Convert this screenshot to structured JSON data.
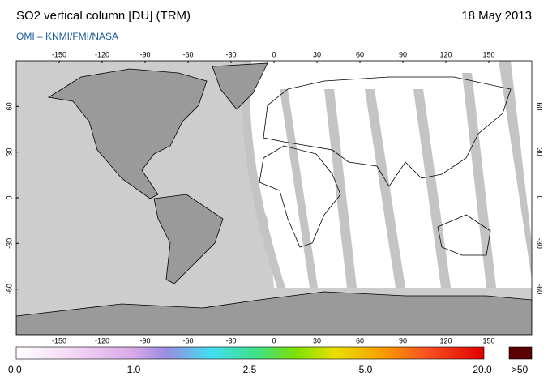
{
  "header": {
    "title": "SO2 vertical column [DU] (TRM)",
    "date": "18 May 2013",
    "source": "OMI  –  KNMI/FMI/NASA"
  },
  "map": {
    "xlim": [
      -180,
      180
    ],
    "ylim": [
      -90,
      90
    ],
    "lon_ticks": [
      -150,
      -120,
      -90,
      -60,
      -30,
      0,
      30,
      60,
      90,
      120,
      150
    ],
    "lat_ticks": [
      60,
      30,
      0,
      -30,
      -60
    ]
  },
  "colorbar": {
    "labels": [
      "0.0",
      "1.0",
      "2.5",
      "5.0",
      "20.0",
      ">50"
    ]
  }
}
